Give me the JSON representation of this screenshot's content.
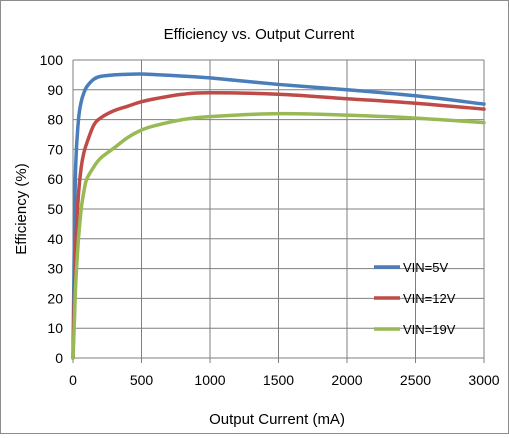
{
  "chart_data": {
    "type": "line",
    "title": "Efficiency vs. Output Current",
    "xlabel": "Output Current (mA)",
    "ylabel": "Efficiency (%)",
    "xlim": [
      0,
      3000
    ],
    "ylim": [
      0,
      100
    ],
    "x_ticks": [
      0,
      500,
      1000,
      1500,
      2000,
      2500,
      3000
    ],
    "y_ticks": [
      0,
      10,
      20,
      30,
      40,
      50,
      60,
      70,
      80,
      90,
      100
    ],
    "grid": true,
    "legend_position": "bottom-right",
    "series": [
      {
        "name": "VIN=5V",
        "color": "#4a7ebb",
        "x": [
          0,
          10,
          20,
          40,
          60,
          80,
          100,
          150,
          200,
          300,
          400,
          500,
          600,
          800,
          1000,
          1500,
          2000,
          2500,
          3000
        ],
        "y": [
          0,
          40,
          65,
          80,
          86,
          89,
          91,
          93.5,
          94.5,
          95,
          95.2,
          95.3,
          95.1,
          94.6,
          94,
          91.8,
          90,
          88,
          85.2
        ]
      },
      {
        "name": "VIN=12V",
        "color": "#be4b48",
        "x": [
          0,
          10,
          20,
          40,
          60,
          80,
          100,
          150,
          200,
          300,
          400,
          500,
          600,
          800,
          1000,
          1500,
          2000,
          2500,
          3000
        ],
        "y": [
          0,
          20,
          38,
          55,
          64,
          69,
          72,
          78,
          80.5,
          83,
          84.5,
          86,
          87,
          88.5,
          89,
          88.5,
          87,
          85.5,
          83.5
        ]
      },
      {
        "name": "VIN=19V",
        "color": "#98b954",
        "x": [
          0,
          10,
          20,
          40,
          60,
          80,
          100,
          150,
          200,
          300,
          400,
          500,
          600,
          800,
          1000,
          1500,
          2000,
          2500,
          3000
        ],
        "y": [
          0,
          12,
          25,
          40,
          50,
          56,
          60,
          64,
          67,
          70.5,
          74,
          76.5,
          78,
          80,
          81,
          82,
          81.5,
          80.5,
          79
        ]
      }
    ]
  }
}
